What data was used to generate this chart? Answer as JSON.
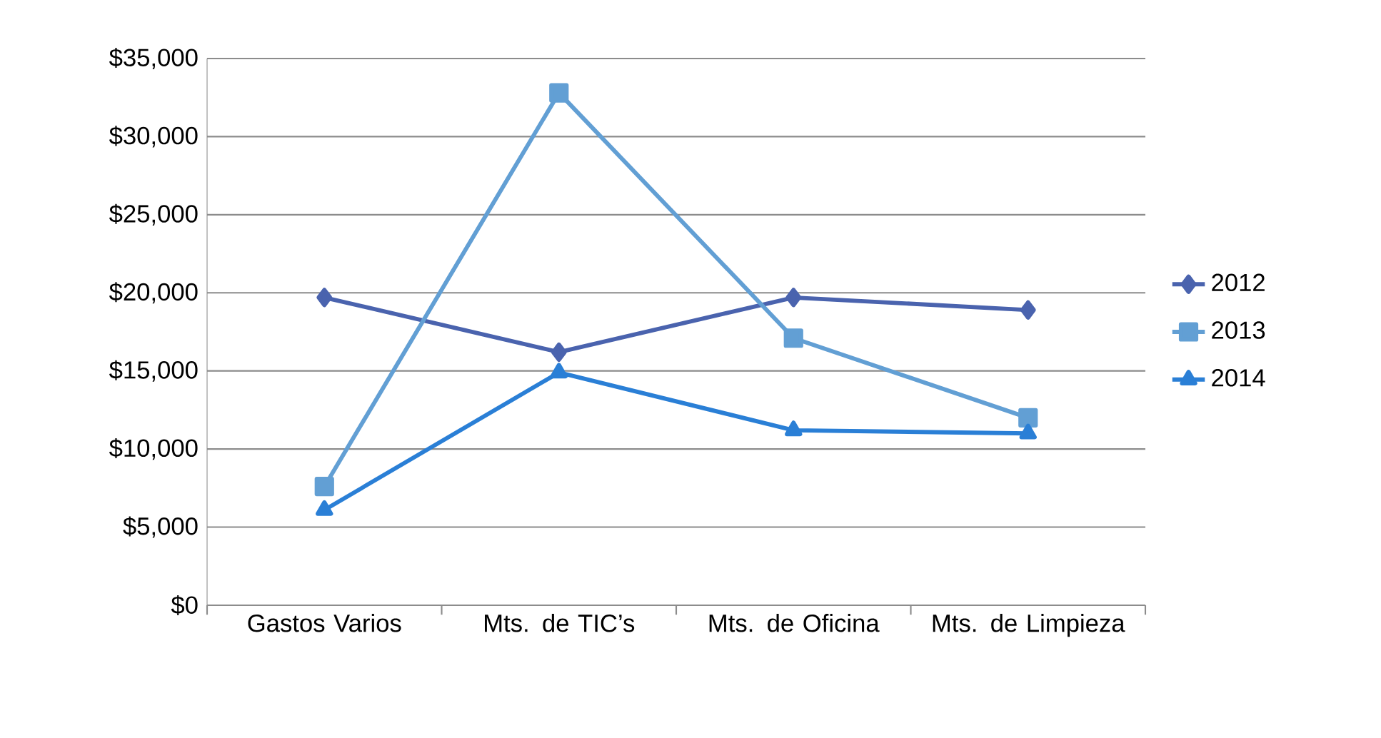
{
  "chart_data": {
    "type": "line",
    "categories": [
      "Gastos Varios",
      "Mts. de TIC’s",
      "Mts. de Oficina",
      "Mts. de Limpieza"
    ],
    "series": [
      {
        "name": "2012",
        "color": "#4a63ae",
        "marker": "diamond",
        "values": [
          19700,
          16200,
          19700,
          18900
        ]
      },
      {
        "name": "2013",
        "color": "#629fd4",
        "marker": "square",
        "values": [
          7600,
          32800,
          17100,
          12000
        ]
      },
      {
        "name": "2014",
        "color": "#2a7fd6",
        "marker": "triangle",
        "values": [
          6100,
          14900,
          11200,
          11000
        ]
      }
    ],
    "ylim": [
      0,
      35000
    ],
    "yticks": [
      {
        "value": 0,
        "label": "$0"
      },
      {
        "value": 5000,
        "label": "$5,000"
      },
      {
        "value": 10000,
        "label": "$10,000"
      },
      {
        "value": 15000,
        "label": "$15,000"
      },
      {
        "value": 20000,
        "label": "$20,000"
      },
      {
        "value": 25000,
        "label": "$25,000"
      },
      {
        "value": 30000,
        "label": "$30,000"
      },
      {
        "value": 35000,
        "label": "$35,000"
      }
    ],
    "grid": "y",
    "legend": "right",
    "line_style": "solid"
  }
}
